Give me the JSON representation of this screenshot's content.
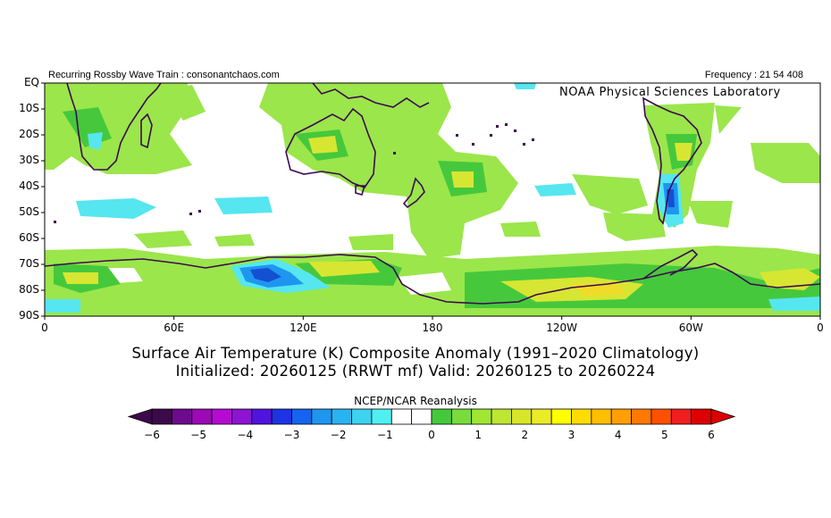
{
  "header": {
    "left_text": "Recurring Rossby Wave Train : consonantchaos.com",
    "right_text": "Frequency : 21 54 408",
    "lab_text": "NOAA Physical Sciences Laboratory"
  },
  "map": {
    "lat_labels": [
      "EQ",
      "10S",
      "20S",
      "30S",
      "40S",
      "50S",
      "60S",
      "70S",
      "80S",
      "90S"
    ],
    "lon_labels": [
      "0",
      "60E",
      "120E",
      "180",
      "120W",
      "60W",
      "0"
    ],
    "colors": {
      "warm_light": "#9be64b",
      "warm_mid": "#46c83c",
      "warm_yellow": "#d7e632",
      "warm_gold": "#f0dc28",
      "cool_light": "#55e6f0",
      "cool_mid": "#1e96f0",
      "cool_dark": "#1450d2",
      "coast": "#3c0a50"
    }
  },
  "title": {
    "line1": "Surface Air Temperature (K) Composite Anomaly (1991–2020 Climatology)",
    "line2": "Initialized: 20260125 (RRWT mf) Valid: 20260125 to 20260224"
  },
  "colorbar": {
    "source": "NCEP/NCAR Reanalysis",
    "tick_labels": [
      "−6",
      "−5",
      "−4",
      "−3",
      "−2",
      "−1",
      "0",
      "1",
      "2",
      "3",
      "4",
      "5",
      "6"
    ],
    "colors": [
      "#3c0a4b",
      "#6e0a8c",
      "#9b0ab4",
      "#b40ad2",
      "#8c14d2",
      "#5014dc",
      "#1e32e6",
      "#1464f0",
      "#1e96f0",
      "#28b4f0",
      "#3cd2f0",
      "#50f0f0",
      "#ffffff",
      "#ffffff",
      "#46c83c",
      "#78dc3c",
      "#a0e632",
      "#bee632",
      "#d7e628",
      "#ebeb28",
      "#ffff00",
      "#ffdc00",
      "#ffbe00",
      "#ffa000",
      "#ff7800",
      "#ff5000",
      "#f01e1e",
      "#dc0000"
    ],
    "left_arrow_color": "#3c0a4b",
    "right_arrow_color": "#dc0000"
  }
}
